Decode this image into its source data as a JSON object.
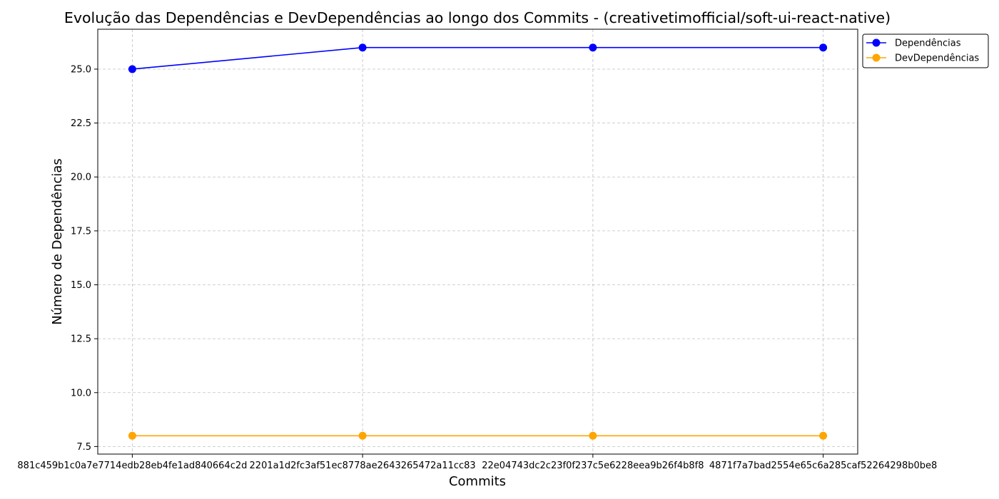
{
  "chart_data": {
    "type": "line",
    "title": "Evolução das Dependências e DevDependências ao longo dos Commits - (creativetimofficial/soft-ui-react-native)",
    "xlabel": "Commits",
    "ylabel": "Número de Dependências",
    "categories": [
      "881c459b1c0a7e7714edb28eb4fe1ad840664c2d",
      "2201a1d2fc3af51ec8778ae2643265472a11cc83",
      "22e04743dc2c23f0f237c5e6228eea9b26f4b8f8",
      "4871f7a7bad2554e65c6a285caf52264298b0be8"
    ],
    "series": [
      {
        "name": "Dependências",
        "values": [
          25,
          26,
          26,
          26
        ],
        "color": "#0000ff"
      },
      {
        "name": "DevDependências",
        "values": [
          8,
          8,
          8,
          8
        ],
        "color": "#ffa500"
      }
    ],
    "ylim": [
      7.15,
      26.85
    ],
    "yticks": [
      "7.5",
      "10.0",
      "12.5",
      "15.0",
      "17.5",
      "20.0",
      "22.5",
      "25.0"
    ],
    "grid": true,
    "legend_position": "outside-top-right"
  }
}
